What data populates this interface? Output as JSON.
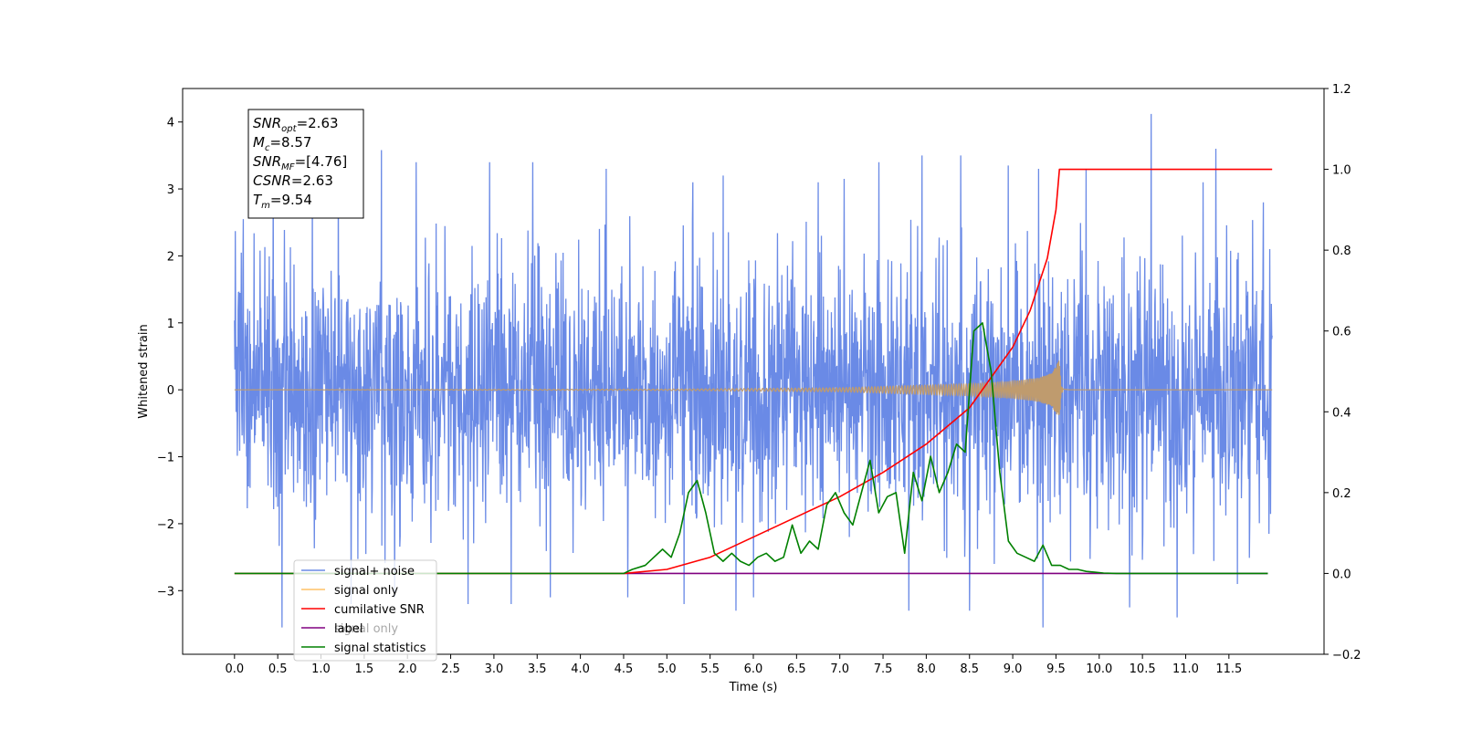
{
  "chart_data": {
    "type": "line",
    "xlabel": "Time (s)",
    "ylabel": "Whitened strain",
    "xlim": [
      -0.6,
      12.6
    ],
    "ylim": [
      -3.95,
      4.5
    ],
    "y2lim": [
      -0.2,
      1.2
    ],
    "xticks": [
      "0.0",
      "0.5",
      "1.0",
      "1.5",
      "2.0",
      "2.5",
      "3.0",
      "3.5",
      "4.0",
      "4.5",
      "5.0",
      "5.5",
      "6.0",
      "6.5",
      "7.0",
      "7.5",
      "8.0",
      "8.5",
      "9.0",
      "9.5",
      "10.0",
      "10.5",
      "11.0",
      "11.5"
    ],
    "yticks": [
      "−3",
      "−2",
      "−1",
      "0",
      "1",
      "2",
      "3",
      "4"
    ],
    "y2ticks": [
      "−0.2",
      "0.0",
      "0.2",
      "0.4",
      "0.6",
      "0.8",
      "1.0",
      "1.2"
    ],
    "grid": false,
    "legend_position": "lower-left",
    "legend": [
      {
        "label": "signal+ noise",
        "color": "#6a8ae6"
      },
      {
        "label": "signal only",
        "color": "#ffc266"
      },
      {
        "label": "cumilative SNR",
        "color": "#ff0000"
      },
      {
        "label": "label",
        "color": "#800080"
      },
      {
        "label": "signal statistics",
        "color": "#008000"
      }
    ],
    "legend_hidden_label": "signal only",
    "annotation": [
      {
        "base": "SNR",
        "sub": "opt",
        "value": "=2.63"
      },
      {
        "base": "M",
        "sub": "c",
        "value": "=8.57"
      },
      {
        "base": "SNR",
        "sub": "MF",
        "value": "=[4.76]"
      },
      {
        "base": "CSNR",
        "sub": "",
        "value": "=2.63"
      },
      {
        "base": "T",
        "sub": "m",
        "value": "=9.54"
      }
    ],
    "series": [
      {
        "name": "signal+ noise",
        "axis": "left",
        "color": "#6a8ae6",
        "description": "whitened strain noise, roughly uniform envelope about ±2.5 with spikes",
        "t_range": [
          0.0,
          12.0
        ],
        "envelope": 2.6,
        "peaks": [
          [
            0.1,
            2.55
          ],
          [
            0.45,
            3.3
          ],
          [
            0.55,
            -3.55
          ],
          [
            0.9,
            3.0
          ],
          [
            1.2,
            3.3
          ],
          [
            1.35,
            -3.2
          ],
          [
            1.7,
            3.58
          ],
          [
            1.85,
            -3.1
          ],
          [
            2.1,
            3.4
          ],
          [
            2.7,
            -3.2
          ],
          [
            2.95,
            3.4
          ],
          [
            3.2,
            -3.2
          ],
          [
            3.45,
            3.4
          ],
          [
            3.65,
            -3.1
          ],
          [
            4.3,
            3.3
          ],
          [
            4.55,
            -3.1
          ],
          [
            5.2,
            -3.2
          ],
          [
            5.3,
            3.1
          ],
          [
            5.65,
            3.2
          ],
          [
            5.8,
            -3.3
          ],
          [
            6.0,
            -3.1
          ],
          [
            6.75,
            3.1
          ],
          [
            7.05,
            3.15
          ],
          [
            7.45,
            3.4
          ],
          [
            7.8,
            -3.3
          ],
          [
            7.95,
            3.5
          ],
          [
            8.4,
            3.5
          ],
          [
            8.5,
            -3.3
          ],
          [
            8.95,
            3.35
          ],
          [
            9.3,
            3.3
          ],
          [
            9.35,
            -3.55
          ],
          [
            9.85,
            3.3
          ],
          [
            10.35,
            -3.25
          ],
          [
            10.6,
            4.12
          ],
          [
            10.9,
            -3.4
          ],
          [
            11.2,
            3.1
          ],
          [
            11.35,
            3.6
          ],
          [
            11.6,
            -2.9
          ],
          [
            11.9,
            2.8
          ]
        ]
      },
      {
        "name": "signal only",
        "axis": "left",
        "color": "#bf9b6e",
        "description": "chirp, amplitude growing until merger at 9.54 s then ringing down",
        "points_envelope": [
          [
            0.0,
            0.0
          ],
          [
            5.0,
            0.01
          ],
          [
            6.0,
            0.02
          ],
          [
            7.0,
            0.03
          ],
          [
            7.5,
            0.05
          ],
          [
            8.0,
            0.07
          ],
          [
            8.5,
            0.09
          ],
          [
            9.0,
            0.13
          ],
          [
            9.3,
            0.18
          ],
          [
            9.45,
            0.25
          ],
          [
            9.54,
            0.45
          ],
          [
            9.56,
            0.05
          ],
          [
            9.65,
            0.0
          ],
          [
            12.0,
            0.0
          ]
        ]
      },
      {
        "name": "cumilative SNR",
        "axis": "right",
        "color": "#ff0000",
        "x": [
          0.0,
          4.0,
          4.5,
          5.0,
          5.5,
          6.0,
          6.5,
          7.0,
          7.5,
          8.0,
          8.5,
          9.0,
          9.2,
          9.4,
          9.5,
          9.54,
          12.0
        ],
        "y": [
          0.0,
          0.0,
          0.0,
          0.01,
          0.04,
          0.09,
          0.14,
          0.19,
          0.25,
          0.32,
          0.41,
          0.56,
          0.65,
          0.78,
          0.9,
          1.0,
          1.0
        ]
      },
      {
        "name": "label",
        "axis": "right",
        "color": "#800080",
        "x": [
          4.5,
          11.95
        ],
        "y": [
          0.0,
          0.0
        ]
      },
      {
        "name": "signal statistics",
        "axis": "right",
        "color": "#008000",
        "x": [
          0.0,
          4.0,
          4.5,
          4.6,
          4.75,
          4.85,
          4.95,
          5.05,
          5.15,
          5.25,
          5.35,
          5.45,
          5.55,
          5.65,
          5.75,
          5.85,
          5.95,
          6.05,
          6.15,
          6.25,
          6.35,
          6.45,
          6.55,
          6.65,
          6.75,
          6.85,
          6.95,
          7.05,
          7.15,
          7.25,
          7.35,
          7.45,
          7.55,
          7.65,
          7.75,
          7.85,
          7.95,
          8.05,
          8.15,
          8.25,
          8.35,
          8.45,
          8.55,
          8.65,
          8.75,
          8.85,
          8.95,
          9.05,
          9.15,
          9.25,
          9.35,
          9.45,
          9.55,
          9.65,
          9.75,
          9.85,
          9.95,
          10.05,
          10.2,
          11.95
        ],
        "y": [
          0.0,
          0.0,
          0.0,
          0.01,
          0.02,
          0.04,
          0.06,
          0.04,
          0.1,
          0.2,
          0.23,
          0.15,
          0.05,
          0.03,
          0.05,
          0.03,
          0.02,
          0.04,
          0.05,
          0.03,
          0.04,
          0.12,
          0.05,
          0.08,
          0.06,
          0.17,
          0.2,
          0.15,
          0.12,
          0.2,
          0.28,
          0.15,
          0.19,
          0.2,
          0.05,
          0.25,
          0.18,
          0.29,
          0.2,
          0.25,
          0.32,
          0.3,
          0.6,
          0.62,
          0.5,
          0.25,
          0.08,
          0.05,
          0.04,
          0.03,
          0.07,
          0.02,
          0.02,
          0.01,
          0.01,
          0.005,
          0.003,
          0.001,
          0.0,
          0.0
        ]
      }
    ]
  }
}
